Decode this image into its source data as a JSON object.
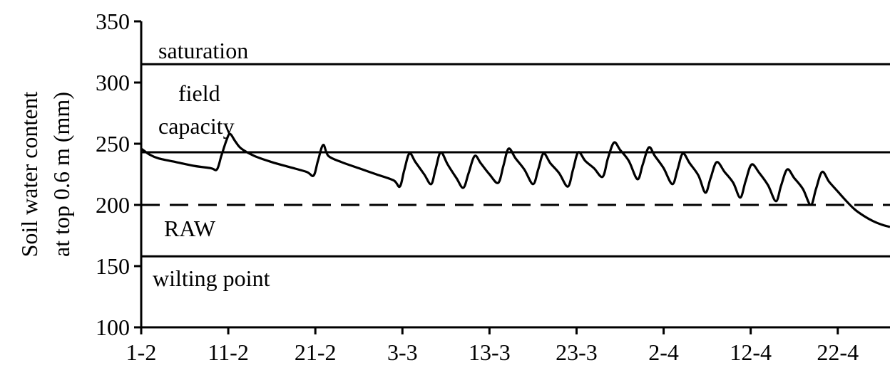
{
  "chart_data": {
    "type": "line",
    "ylabel_line1": "Soil water content",
    "ylabel_line2": "at top 0.6 m  (mm)",
    "ylim": [
      100,
      350
    ],
    "yticks": [
      100,
      150,
      200,
      250,
      300,
      350
    ],
    "xlim_day": [
      1,
      87
    ],
    "xticks": [
      {
        "day": 1,
        "label": "1-2"
      },
      {
        "day": 11,
        "label": "11-2"
      },
      {
        "day": 21,
        "label": "21-2"
      },
      {
        "day": 31,
        "label": "3-3"
      },
      {
        "day": 41,
        "label": "13-3"
      },
      {
        "day": 51,
        "label": "23-3"
      },
      {
        "day": 61,
        "label": "2-4"
      },
      {
        "day": 71,
        "label": "12-4"
      },
      {
        "day": 81,
        "label": "22-4"
      }
    ],
    "reference_lines": [
      {
        "name": "saturation",
        "label": "saturation",
        "value": 315,
        "style": "solid"
      },
      {
        "name": "field-capacity",
        "label_line1": "field",
        "label_line2": "capacity",
        "value": 243,
        "style": "solid"
      },
      {
        "name": "raw",
        "label": "RAW",
        "value": 200,
        "style": "dashed"
      },
      {
        "name": "wilting-point",
        "label": "wilting point",
        "value": 158,
        "style": "solid"
      }
    ],
    "series": [
      {
        "points": [
          [
            1,
            246
          ],
          [
            2,
            241
          ],
          [
            3,
            238
          ],
          [
            5,
            235
          ],
          [
            7,
            232
          ],
          [
            9,
            230
          ],
          [
            9.7,
            229
          ],
          [
            10.2,
            240
          ],
          [
            10.8,
            253
          ],
          [
            11.2,
            258
          ],
          [
            11.8,
            252
          ],
          [
            12.5,
            246
          ],
          [
            14,
            240
          ],
          [
            16,
            235
          ],
          [
            18,
            231
          ],
          [
            20,
            227
          ],
          [
            20.8,
            224
          ],
          [
            21.3,
            236
          ],
          [
            21.9,
            249
          ],
          [
            22.5,
            240
          ],
          [
            24,
            235
          ],
          [
            26,
            230
          ],
          [
            28,
            225
          ],
          [
            30,
            220
          ],
          [
            30.7,
            215
          ],
          [
            31.2,
            228
          ],
          [
            31.8,
            242
          ],
          [
            32.5,
            235
          ],
          [
            33.5,
            225
          ],
          [
            34.3,
            217
          ],
          [
            34.8,
            229
          ],
          [
            35.4,
            243
          ],
          [
            36.2,
            233
          ],
          [
            37.2,
            222
          ],
          [
            38,
            214
          ],
          [
            38.6,
            226
          ],
          [
            39.3,
            240
          ],
          [
            40,
            234
          ],
          [
            41,
            225
          ],
          [
            42,
            218
          ],
          [
            42.6,
            232
          ],
          [
            43.2,
            246
          ],
          [
            44,
            238
          ],
          [
            45,
            229
          ],
          [
            46,
            217
          ],
          [
            46.6,
            229
          ],
          [
            47.2,
            242
          ],
          [
            48,
            234
          ],
          [
            49,
            226
          ],
          [
            50,
            215
          ],
          [
            50.6,
            229
          ],
          [
            51.2,
            243
          ],
          [
            52,
            236
          ],
          [
            53,
            230
          ],
          [
            54,
            223
          ],
          [
            54.6,
            238
          ],
          [
            55.3,
            251
          ],
          [
            56,
            245
          ],
          [
            57,
            236
          ],
          [
            58,
            221
          ],
          [
            58.6,
            233
          ],
          [
            59.3,
            247
          ],
          [
            60,
            240
          ],
          [
            61,
            230
          ],
          [
            62,
            217
          ],
          [
            62.6,
            229
          ],
          [
            63.2,
            242
          ],
          [
            64,
            234
          ],
          [
            65,
            224
          ],
          [
            65.8,
            210
          ],
          [
            66.4,
            222
          ],
          [
            67.1,
            235
          ],
          [
            68,
            227
          ],
          [
            69,
            218
          ],
          [
            69.8,
            206
          ],
          [
            70.4,
            219
          ],
          [
            71.1,
            233
          ],
          [
            72,
            226
          ],
          [
            73,
            216
          ],
          [
            73.9,
            203
          ],
          [
            74.5,
            216
          ],
          [
            75.2,
            229
          ],
          [
            76,
            222
          ],
          [
            77,
            213
          ],
          [
            77.9,
            200
          ],
          [
            78.5,
            213
          ],
          [
            79.2,
            227
          ],
          [
            80,
            219
          ],
          [
            81,
            211
          ],
          [
            82,
            203
          ],
          [
            83,
            196
          ],
          [
            84,
            191
          ],
          [
            85,
            187
          ],
          [
            86,
            184
          ],
          [
            87,
            182
          ]
        ]
      }
    ]
  }
}
